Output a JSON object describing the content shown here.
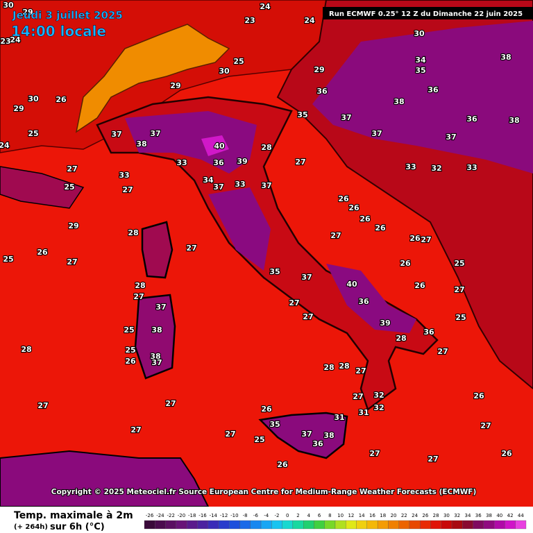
{
  "header": {
    "date": "Jeudi 3 juillet 2025",
    "time": "14:00 locale",
    "run": "Run ECMWF 0.25° 12 Z du Dimanche 22 juin 2025"
  },
  "copyright": "Copyright © 2025 Meteociel.fr Source European Centre for Medium-Range Weather Forecasts (ECMWF)",
  "map": {
    "labels": [
      28,
      27,
      26,
      25,
      29,
      27,
      33,
      37,
      38,
      37,
      40,
      39,
      33,
      36,
      34,
      37,
      33,
      37,
      28,
      27,
      26,
      26,
      26,
      27,
      26,
      33,
      32,
      33,
      30,
      34,
      35,
      38,
      36,
      38,
      37,
      37,
      37,
      36,
      38,
      29,
      36,
      35,
      24,
      23,
      24,
      25,
      30,
      29,
      27,
      28,
      27,
      37,
      38,
      38,
      37,
      25,
      25,
      26,
      28,
      27,
      27,
      27,
      27,
      26,
      35,
      37,
      36,
      38,
      31,
      25,
      26,
      27,
      27,
      26,
      27,
      26,
      27,
      28,
      36,
      39,
      40,
      36,
      27,
      27,
      28,
      28,
      27,
      26,
      26,
      25,
      27,
      25,
      26,
      27,
      35,
      37,
      27,
      32,
      31,
      32,
      29,
      30,
      24,
      25,
      30,
      29,
      26,
      27,
      25,
      24,
      23
    ]
  },
  "legend": {
    "title": "Temp. maximale à 2m",
    "lead": "(+ 264h)",
    "period": "sur 6h (°C)",
    "ticks": [
      -26,
      -24,
      -22,
      -20,
      -18,
      -16,
      -14,
      -12,
      -10,
      -8,
      -6,
      -4,
      -2,
      0,
      2,
      4,
      6,
      8,
      10,
      12,
      14,
      16,
      18,
      20,
      22,
      24,
      26,
      28,
      30,
      32,
      34,
      36,
      38,
      40,
      42,
      44
    ],
    "colors": [
      "#3a0a3a",
      "#4a0c4e",
      "#5a1062",
      "#681478",
      "#5a1a8c",
      "#4c22a0",
      "#3a2cb8",
      "#2a3ccc",
      "#1e50dc",
      "#1a6ae8",
      "#1888f0",
      "#18a6f4",
      "#18c4f0",
      "#18d8d0",
      "#18d8a0",
      "#20d070",
      "#40d040",
      "#78d828",
      "#b0e020",
      "#e0e818",
      "#f0d010",
      "#f4b808",
      "#f49c04",
      "#f08000",
      "#ec6400",
      "#e84800",
      "#e82a04",
      "#e01408",
      "#c80808",
      "#a80a10",
      "#8a0a30",
      "#800a60",
      "#900a80",
      "#b00aa8",
      "#d014c8",
      "#e840e0"
    ]
  }
}
